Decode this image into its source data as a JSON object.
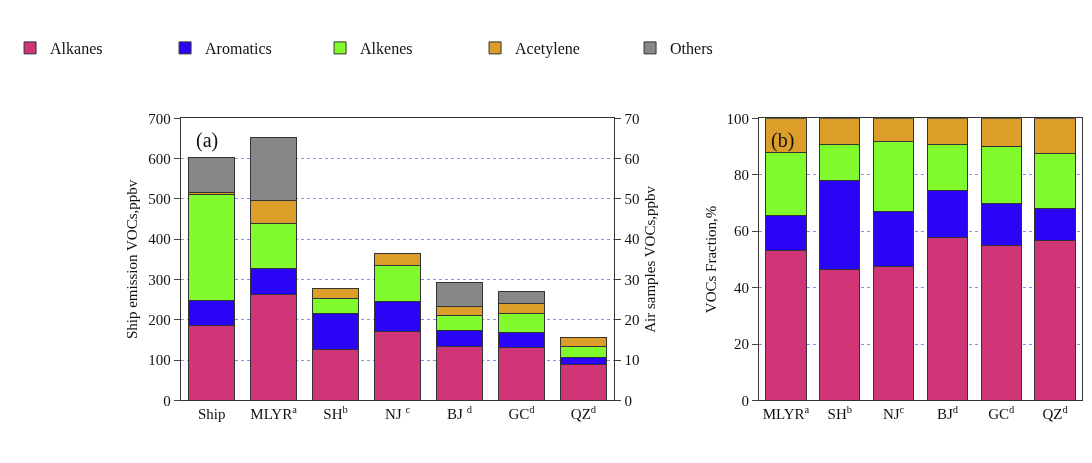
{
  "chart_data": [
    {
      "type": "bar",
      "stacked": true,
      "legend": "top",
      "grid": "y",
      "annotations": [
        "(a)"
      ],
      "ylabel": "Ship emission VOCs,ppbv",
      "y2label": "Air samples VOCs,ppbv",
      "categories": [
        "Ship",
        "MLYR$^{a}$",
        "SH$^{b}$",
        "NJ $^{c}$",
        "BJ $^{d}$",
        "GC$^{d}$",
        "QZ$^{d}$"
      ],
      "ylim": [
        0,
        700
      ],
      "yticks": [
        0,
        100,
        200,
        300,
        400,
        500,
        600,
        700
      ],
      "y2lim": [
        0,
        70
      ],
      "y2ticks": [
        0,
        10,
        20,
        30,
        40,
        50,
        60,
        70
      ],
      "series": [
        {
          "color": "#d03577",
          "values": [
            187,
            null,
            null,
            null,
            null,
            null,
            null
          ]
        },
        {
          "color": "#2a05f5",
          "values": [
            61,
            null,
            null,
            null,
            null,
            null,
            null
          ]
        },
        {
          "color": "#80fa2d",
          "values": [
            262,
            null,
            null,
            null,
            null,
            null,
            null
          ]
        },
        {
          "color": "#dd9e29",
          "values": [
            6,
            null,
            null,
            null,
            null,
            null,
            null
          ]
        },
        {
          "color": "#878787",
          "values": [
            87,
            null,
            null,
            null,
            null,
            null,
            null
          ]
        },
        {
          "name": "Alkanes",
          "axis": "y2",
          "color": "#d03577",
          "values": [
            null,
            26.3,
            12.7,
            17.2,
            13.4,
            13.2,
            8.8
          ]
        },
        {
          "name": "Aromatics",
          "axis": "y2",
          "color": "#2a05f5",
          "values": [
            null,
            6.4,
            8.9,
            7.3,
            3.9,
            3.7,
            1.8
          ]
        },
        {
          "name": "Alkenes",
          "axis": "y2",
          "color": "#80fa2d",
          "values": [
            null,
            11.2,
            3.6,
            8.9,
            3.7,
            4.7,
            2.8
          ]
        },
        {
          "name": "Acetylene",
          "axis": "y2",
          "color": "#dd9e29",
          "values": [
            null,
            5.8,
            2.5,
            3.1,
            2.2,
            2.4,
            2.1
          ]
        },
        {
          "name": "Others",
          "axis": "y2",
          "color": "#878787",
          "values": [
            null,
            15.6,
            null,
            null,
            6.1,
            3.1,
            null
          ]
        }
      ]
    },
    {
      "type": "bar",
      "stacked": true,
      "grid": "y",
      "annotations": [
        "(b)"
      ],
      "ylabel": "VOCs Fraction,%",
      "categories": [
        "MLYR$^{a}$",
        "SH$^{b}$",
        "NJ$^{c}$",
        "BJ$^{d}$",
        "GC$^{d}$",
        "QZ$^{d}$"
      ],
      "ylim": [
        0,
        100
      ],
      "yticks": [
        0,
        20,
        40,
        60,
        80,
        100
      ],
      "series": [
        {
          "color": "#d03577",
          "values": [
            53.0,
            46.5,
            47.5,
            57.9,
            55.1,
            56.8
          ]
        },
        {
          "color": "#2a05f5",
          "values": [
            12.5,
            31.4,
            19.6,
            16.7,
            14.8,
            11.4
          ]
        },
        {
          "color": "#80fa2d",
          "values": [
            22.5,
            13.0,
            24.7,
            16.0,
            20.0,
            19.2
          ]
        },
        {
          "color": "#dd9e29",
          "values": [
            12.0,
            9.1,
            8.2,
            9.4,
            10.1,
            12.6
          ]
        }
      ]
    }
  ]
}
